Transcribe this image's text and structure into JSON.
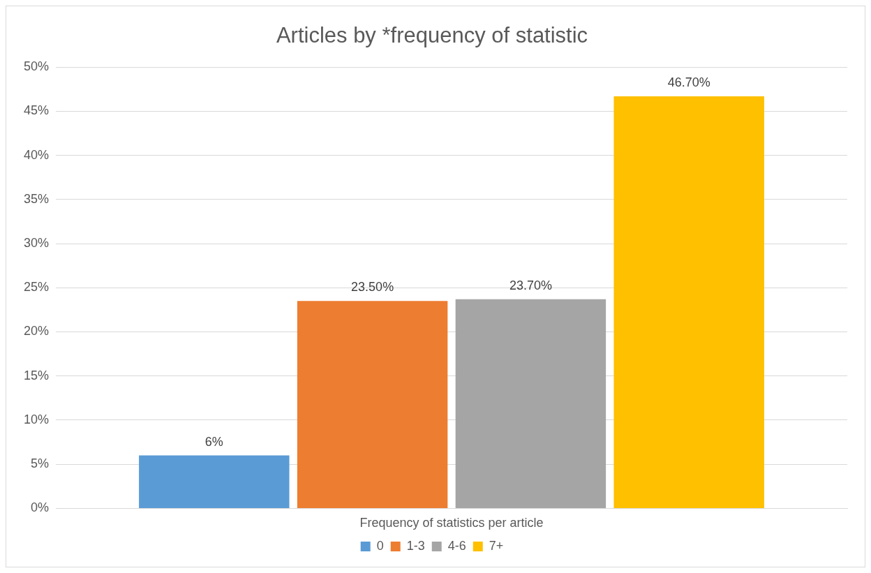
{
  "chart_data": {
    "type": "bar",
    "title": "Articles by *frequency of statistic",
    "categories": [
      "Frequency of statistics per article"
    ],
    "series": [
      {
        "name": "0",
        "color": "#5b9bd5",
        "values": [
          6
        ],
        "value_labels": [
          "6%"
        ]
      },
      {
        "name": "1-3",
        "color": "#ed7d31",
        "values": [
          23.5
        ],
        "value_labels": [
          "23.50%"
        ]
      },
      {
        "name": "4-6",
        "color": "#a5a5a5",
        "values": [
          23.7
        ],
        "value_labels": [
          "23.70%"
        ]
      },
      {
        "name": "7+",
        "color": "#ffc000",
        "values": [
          46.7
        ],
        "value_labels": [
          "46.70%"
        ]
      }
    ],
    "ylim": [
      0,
      50
    ],
    "yticks": [
      {
        "value": 0,
        "label": "0%"
      },
      {
        "value": 5,
        "label": "5%"
      },
      {
        "value": 10,
        "label": "10%"
      },
      {
        "value": 15,
        "label": "15%"
      },
      {
        "value": 20,
        "label": "20%"
      },
      {
        "value": 25,
        "label": "25%"
      },
      {
        "value": 30,
        "label": "30%"
      },
      {
        "value": 35,
        "label": "35%"
      },
      {
        "value": 40,
        "label": "40%"
      },
      {
        "value": 45,
        "label": "45%"
      },
      {
        "value": 50,
        "label": "50%"
      }
    ],
    "grid": "y",
    "legend": "bottom"
  }
}
